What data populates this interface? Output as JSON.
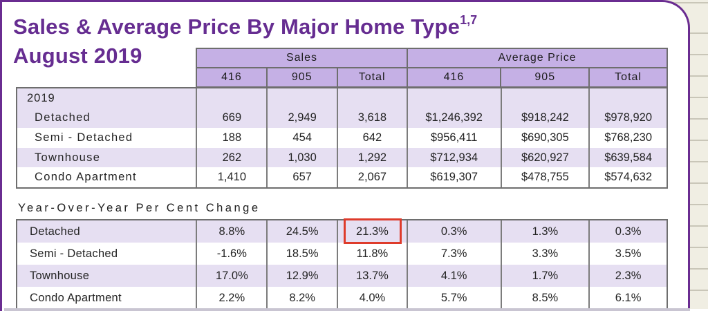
{
  "title": {
    "line1": "Sales & Average Price By Major Home Type",
    "superscript": "1,7",
    "line2": "August 2019"
  },
  "sales_table": {
    "group_headers": [
      "Sales",
      "Average Price"
    ],
    "column_headers": [
      "416",
      "905",
      "Total",
      "416",
      "905",
      "Total"
    ],
    "year_label": "2019",
    "rows": [
      {
        "label": "Detached",
        "cells": [
          "669",
          "2,949",
          "3,618",
          "$1,246,392",
          "$918,242",
          "$978,920"
        ]
      },
      {
        "label": "Semi - Detached",
        "cells": [
          "188",
          "454",
          "642",
          "$956,411",
          "$690,305",
          "$768,230"
        ]
      },
      {
        "label": "Townhouse",
        "cells": [
          "262",
          "1,030",
          "1,292",
          "$712,934",
          "$620,927",
          "$639,584"
        ]
      },
      {
        "label": "Condo Apartment",
        "cells": [
          "1,410",
          "657",
          "2,067",
          "$619,307",
          "$478,755",
          "$574,632"
        ]
      }
    ]
  },
  "yoy_table": {
    "heading": "Year-Over-Year Per Cent Change",
    "rows": [
      {
        "label": "Detached",
        "cells": [
          "8.8%",
          "24.5%",
          "21.3%",
          "0.3%",
          "1.3%",
          "0.3%"
        ]
      },
      {
        "label": "Semi - Detached",
        "cells": [
          "-1.6%",
          "18.5%",
          "11.8%",
          "7.3%",
          "3.3%",
          "3.5%"
        ]
      },
      {
        "label": "Townhouse",
        "cells": [
          "17.0%",
          "12.9%",
          "13.7%",
          "4.1%",
          "1.7%",
          "2.3%"
        ]
      },
      {
        "label": "Condo Apartment",
        "cells": [
          "2.2%",
          "8.2%",
          "4.0%",
          "5.7%",
          "8.5%",
          "6.1%"
        ]
      }
    ]
  },
  "annotation": {
    "type": "red-highlight-box",
    "highlighted_value": "21.3%",
    "color": "#DE3B2B"
  },
  "colors": {
    "title_purple": "#662D91",
    "card_border_purple": "#6A2C91",
    "header_fill": "#C5B0E5",
    "row_stripe_fill": "#E6DFF2",
    "page_background": "#F0EEE3",
    "table_border_grey": "#6E6E6E",
    "highlight_red": "#DE3B2B"
  }
}
